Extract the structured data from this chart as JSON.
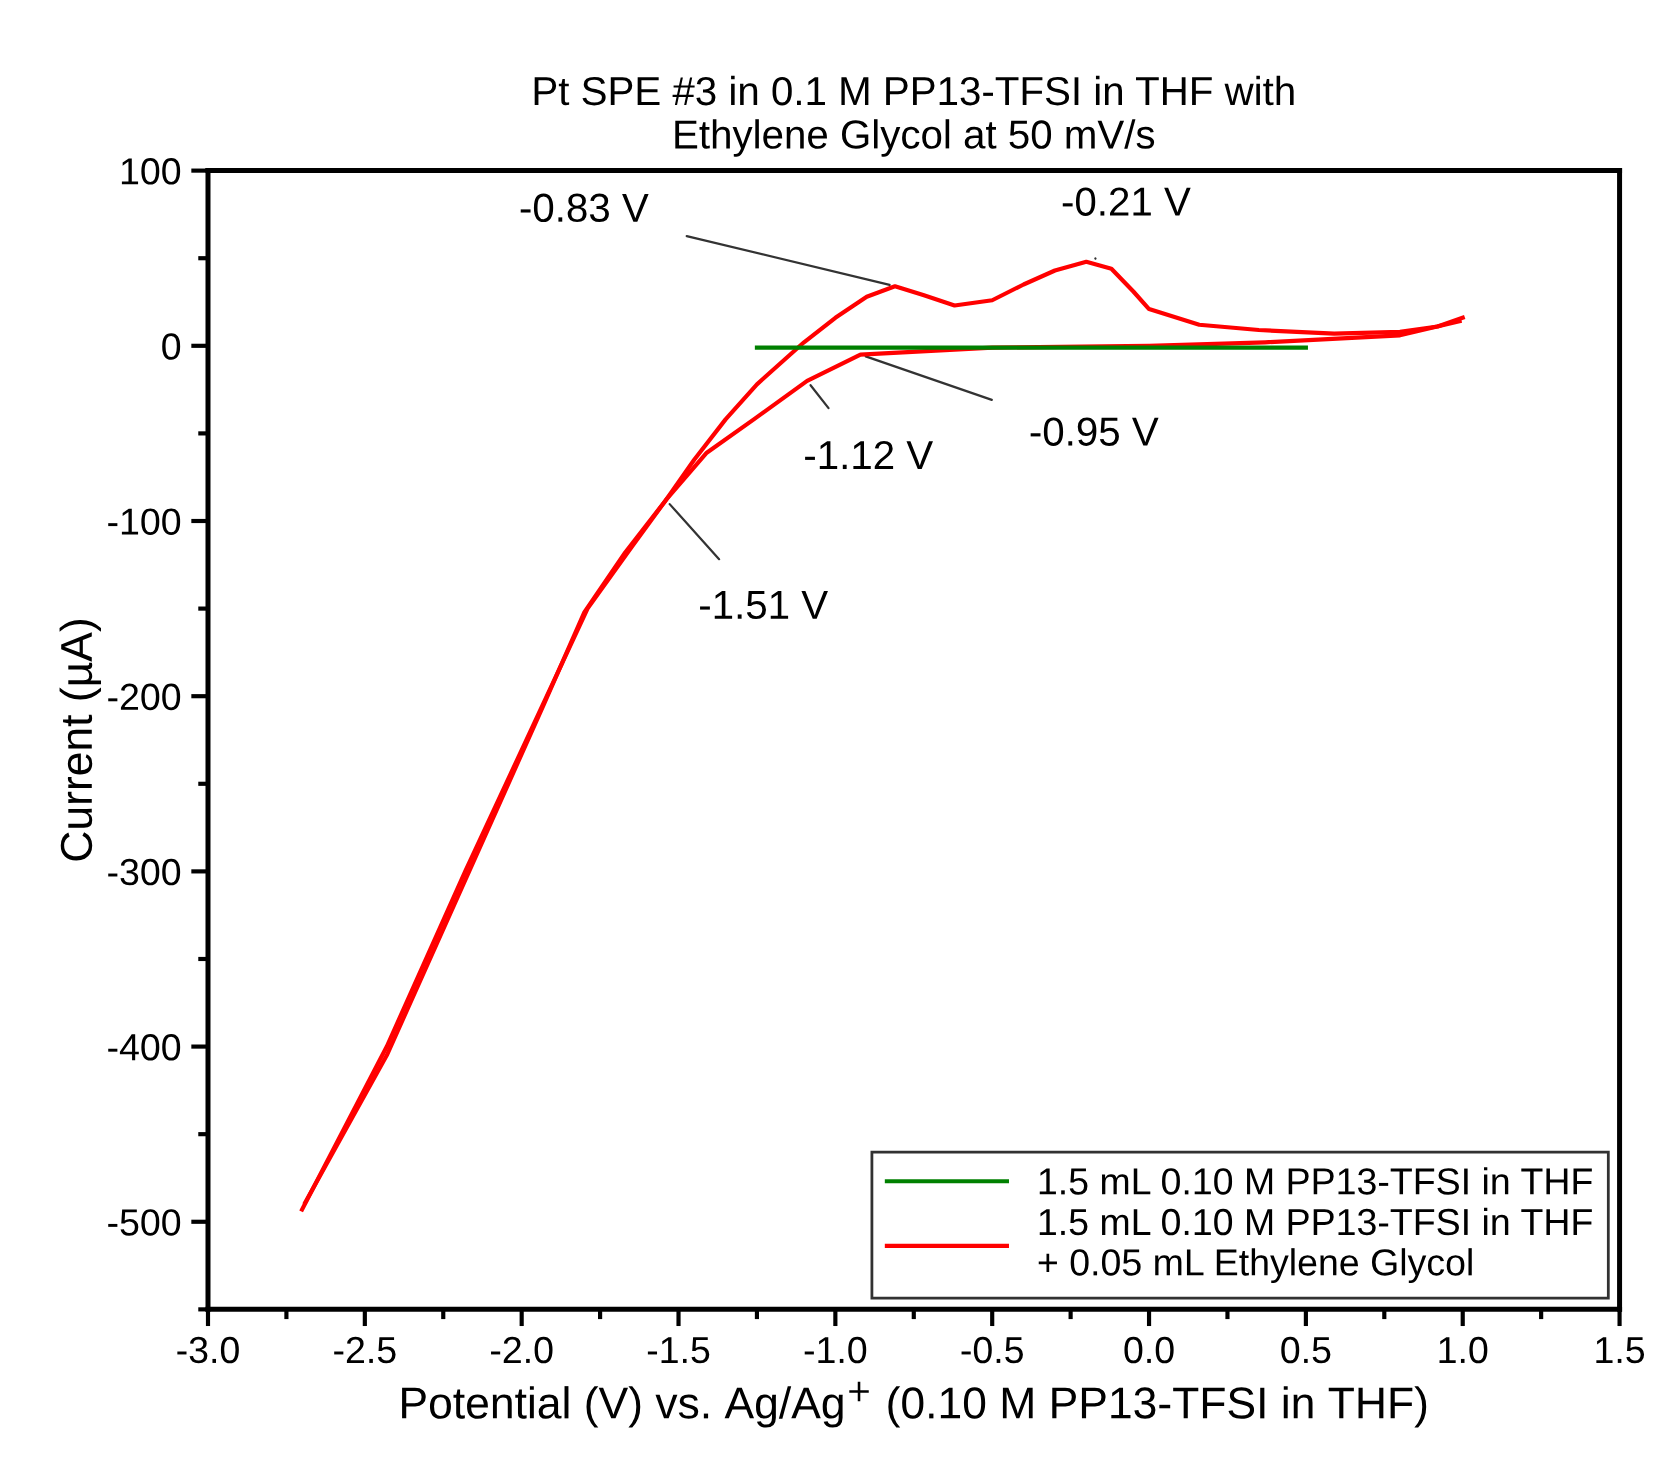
{
  "chart_data": {
    "type": "line",
    "title": "Pt SPE #3 in 0.1 M PP13-TFSI in THF with\nEthylene Glycol at 50 mV/s",
    "xlabel": "Potential (V) vs. Ag/Ag$^{+}$ (0.10 M PP13-TFSI in THF)",
    "ylabel": "Current (µA)",
    "xlim": [
      -3.0,
      1.5
    ],
    "ylim": [
      -550,
      100
    ],
    "xticks": [
      {
        "value": -3.0,
        "label": "-3.0"
      },
      {
        "value": -2.75,
        "label": null
      },
      {
        "value": -2.5,
        "label": "-2.5"
      },
      {
        "value": -2.25,
        "label": null
      },
      {
        "value": -2.0,
        "label": "-2.0"
      },
      {
        "value": -1.75,
        "label": null
      },
      {
        "value": -1.5,
        "label": "-1.5"
      },
      {
        "value": -1.25,
        "label": null
      },
      {
        "value": -1.0,
        "label": "-1.0"
      },
      {
        "value": -0.75,
        "label": null
      },
      {
        "value": -0.5,
        "label": "-0.5"
      },
      {
        "value": -0.25,
        "label": null
      },
      {
        "value": 0.0,
        "label": "0.0"
      },
      {
        "value": 0.25,
        "label": null
      },
      {
        "value": 0.5,
        "label": "0.5"
      },
      {
        "value": 0.75,
        "label": null
      },
      {
        "value": 1.0,
        "label": "1.0"
      },
      {
        "value": 1.25,
        "label": null
      },
      {
        "value": 1.5,
        "label": "1.5"
      }
    ],
    "yticks": [
      {
        "value": -550,
        "label": null
      },
      {
        "value": -500,
        "label": "-500"
      },
      {
        "value": -450,
        "label": null
      },
      {
        "value": -400,
        "label": "-400"
      },
      {
        "value": -350,
        "label": null
      },
      {
        "value": -300,
        "label": "-300"
      },
      {
        "value": -250,
        "label": null
      },
      {
        "value": -200,
        "label": "-200"
      },
      {
        "value": -150,
        "label": null
      },
      {
        "value": -100,
        "label": "-100"
      },
      {
        "value": -50,
        "label": null
      },
      {
        "value": 0,
        "label": "0"
      },
      {
        "value": 50,
        "label": null
      },
      {
        "value": 100,
        "label": "100"
      }
    ],
    "grid": false,
    "legend": "bottom right",
    "marker": "none",
    "line_style": "solid",
    "series": [
      {
        "name": "1.5 mL 0.10 M PP13-TFSI in THF",
        "color": "#008000",
        "x": [
          -1.25,
          -0.9,
          -0.5,
          0.0,
          0.5
        ],
        "values": [
          -1,
          -1,
          -1,
          -1,
          -1
        ]
      },
      {
        "name": "1.5 mL 0.10 M PP13-TFSI in THF\n+ 0.05 mL Ethylene Glycol",
        "color": "#ff0000",
        "x": [
          -2.7,
          -2.43,
          -2.18,
          -1.92,
          -1.79,
          -1.65,
          -1.54,
          -1.45,
          -1.35,
          -1.25,
          -1.15,
          -1.1,
          -1.0,
          -0.9,
          -0.81,
          -0.72,
          -0.62,
          -0.5,
          -0.4,
          -0.3,
          -0.2,
          -0.12,
          -0.05,
          0.0,
          0.16,
          0.35,
          0.59,
          0.8,
          0.92,
          1.0
        ],
        "values": [
          -493,
          -400,
          -300,
          -200,
          -150,
          -115,
          -88,
          -65,
          -42,
          -22,
          -6,
          2,
          16,
          28,
          34,
          29,
          23,
          26,
          35,
          43,
          48,
          44,
          31,
          21,
          12,
          9,
          7,
          8,
          11,
          16
        ]
      },
      {
        "color": "#ff0000",
        "x": [
          -2.69,
          -2.43,
          -2.18,
          -1.93,
          -1.8,
          -1.67,
          -1.54,
          -1.41,
          -1.26,
          -1.09,
          -0.92,
          -0.5,
          0.0,
          0.37,
          0.8,
          0.99
        ],
        "values": [
          -489,
          -405,
          -305,
          -205,
          -152,
          -118,
          -88,
          -61,
          -42,
          -20,
          -5,
          -1,
          0,
          2,
          6,
          14
        ]
      }
    ],
    "annotations": [
      {
        "text": "-0.83 V",
        "x": -0.81,
        "y": 34
      },
      {
        "text": "-0.21 V",
        "x": -0.18,
        "y": 47
      },
      {
        "text": "-0.95 V",
        "x": -0.92,
        "y": -5
      },
      {
        "text": "-1.12 V",
        "x": -1.09,
        "y": -20
      },
      {
        "text": "-1.51 V",
        "x": -1.54,
        "y": -88
      }
    ]
  }
}
